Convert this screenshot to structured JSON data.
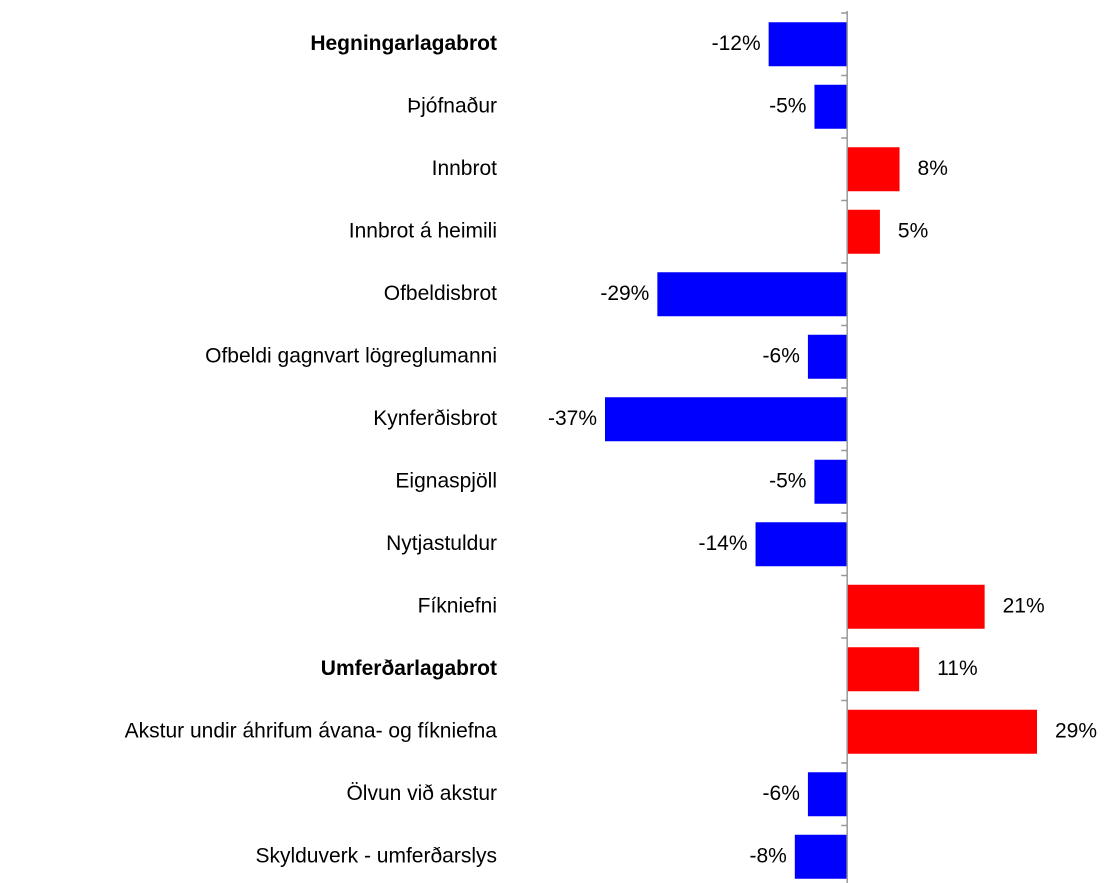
{
  "chart_data": {
    "type": "bar",
    "orientation": "horizontal",
    "categories": [
      "Hegningarlagabrot",
      "Þjófnaður",
      "Innbrot",
      "Innbrot á heimili",
      "Ofbeldisbrot",
      "Ofbeldi gagnvart lögreglumanni",
      "Kynferðisbrot",
      "Eignaspjöll",
      "Nytjastuldur",
      "Fíkniefni",
      "Umferðarlagabrot",
      "Akstur undir áhrifum ávana- og fíkniefna",
      "Ölvun við akstur",
      "Skylduverk - umferðarslys"
    ],
    "values": [
      -12,
      -5,
      8,
      5,
      -29,
      -6,
      -37,
      -5,
      -14,
      21,
      11,
      29,
      -6,
      -8
    ],
    "value_labels": [
      "-12%",
      "-5%",
      "8%",
      "5%",
      "-29%",
      "-6%",
      "-37%",
      "-5%",
      "-14%",
      "21%",
      "11%",
      "29%",
      "-6%",
      "-8%"
    ],
    "bold": [
      true,
      false,
      false,
      false,
      false,
      false,
      false,
      false,
      false,
      false,
      true,
      false,
      false,
      false
    ],
    "positive_color": "#ff0000",
    "negative_color": "#0000ff",
    "xlim": [
      -37,
      29
    ]
  }
}
